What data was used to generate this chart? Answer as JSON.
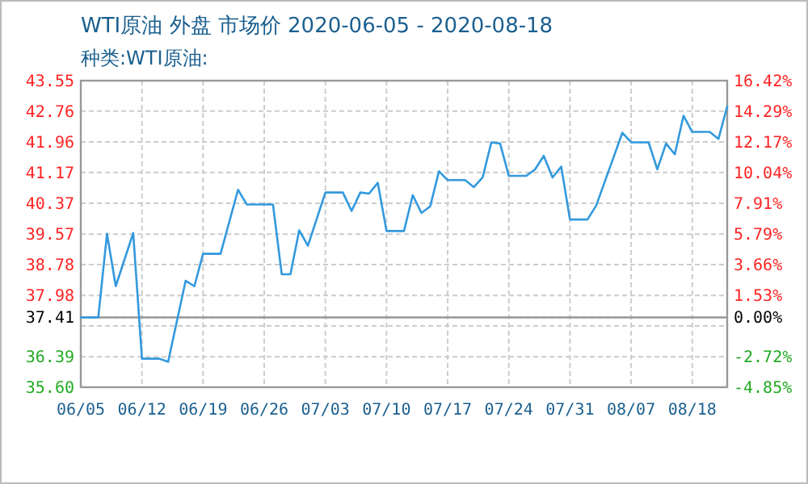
{
  "chart_data": {
    "type": "line",
    "title": "WTI原油 外盘 市场价 2020-06-05 - 2020-08-18",
    "subtitle": "种类:WTI原油:",
    "x": [
      "2020-06-05",
      "2020-06-07",
      "2020-06-08",
      "2020-06-09",
      "2020-06-11",
      "2020-06-12",
      "2020-06-14",
      "2020-06-15",
      "2020-06-17",
      "2020-06-18",
      "2020-06-19",
      "2020-06-21",
      "2020-06-23",
      "2020-06-24",
      "2020-06-27",
      "2020-06-28",
      "2020-06-29",
      "2020-06-30",
      "2020-07-01",
      "2020-07-03",
      "2020-07-05",
      "2020-07-06",
      "2020-07-07",
      "2020-07-08",
      "2020-07-09",
      "2020-07-10",
      "2020-07-12",
      "2020-07-13",
      "2020-07-14",
      "2020-07-15",
      "2020-07-16",
      "2020-07-17",
      "2020-07-19",
      "2020-07-20",
      "2020-07-21",
      "2020-07-22",
      "2020-07-23",
      "2020-07-24",
      "2020-07-26",
      "2020-07-27",
      "2020-07-28",
      "2020-07-29",
      "2020-07-30",
      "2020-07-31",
      "2020-08-02",
      "2020-08-03",
      "2020-08-06",
      "2020-08-07",
      "2020-08-09",
      "2020-08-10",
      "2020-08-11",
      "2020-08-12",
      "2020-08-13",
      "2020-08-14",
      "2020-08-16",
      "2020-08-17",
      "2020-08-18"
    ],
    "series": [
      {
        "color": "#3399dd",
        "values": [
          37.41,
          37.41,
          39.58,
          38.22,
          39.6,
          36.34,
          36.34,
          36.26,
          38.36,
          38.22,
          39.06,
          39.06,
          40.72,
          40.34,
          40.34,
          38.53,
          38.53,
          39.67,
          39.27,
          40.65,
          40.65,
          40.17,
          40.65,
          40.62,
          40.9,
          39.65,
          39.65,
          40.58,
          40.12,
          40.29,
          41.2,
          40.97,
          40.97,
          40.79,
          41.04,
          41.95,
          41.92,
          41.08,
          41.08,
          41.25,
          41.6,
          41.04,
          41.32,
          39.95,
          39.95,
          40.31,
          42.2,
          41.95,
          41.95,
          41.25,
          41.92,
          41.64,
          42.64,
          42.22,
          42.22,
          42.04,
          42.88
        ]
      }
    ],
    "xlim": [
      "2020-06-05",
      "2020-08-18"
    ],
    "xticks": [
      {
        "value": "2020-06-05",
        "label": "06/05"
      },
      {
        "value": "2020-06-12",
        "label": "06/12"
      },
      {
        "value": "2020-06-19",
        "label": "06/19"
      },
      {
        "value": "2020-06-26",
        "label": "06/26"
      },
      {
        "value": "2020-07-03",
        "label": "07/03"
      },
      {
        "value": "2020-07-10",
        "label": "07/10"
      },
      {
        "value": "2020-07-17",
        "label": "07/17"
      },
      {
        "value": "2020-07-24",
        "label": "07/24"
      },
      {
        "value": "2020-07-31",
        "label": "07/31"
      },
      {
        "value": "2020-08-07",
        "label": "08/07"
      },
      {
        "value": "2020-08-14",
        "label": "08/18"
      }
    ],
    "ylim": [
      35.6,
      43.55
    ],
    "yticks": [
      {
        "value": 35.6,
        "label": "35.60"
      },
      36.39,
      {
        "value": 37.19,
        "label": null
      },
      37.41,
      37.98,
      38.78,
      39.57,
      40.37,
      41.17,
      41.96,
      42.76,
      43.55
    ],
    "y2lim": [
      -4.85,
      16.42
    ],
    "y2ticks": [
      {
        "value": -4.85,
        "label": "-4.85%"
      },
      {
        "value": -2.72,
        "label": "-2.72%"
      },
      {
        "value": 0,
        "label": "0.00%"
      },
      {
        "value": 1.53,
        "label": "1.53%"
      },
      {
        "value": 3.66,
        "label": "3.66%"
      },
      {
        "value": 5.79,
        "label": "5.79%"
      },
      {
        "value": 7.91,
        "label": "7.91%"
      },
      {
        "value": 10.04,
        "label": "10.04%"
      },
      {
        "value": 12.17,
        "label": "12.17%"
      },
      {
        "value": 14.29,
        "label": "14.29%"
      },
      {
        "value": 16.42,
        "label": "16.42%"
      }
    ],
    "ref_lines": [
      {
        "axis": "y",
        "value": 37.41,
        "color": "#999999"
      }
    ],
    "grid": true,
    "line_style": "solid",
    "marker": "none"
  }
}
